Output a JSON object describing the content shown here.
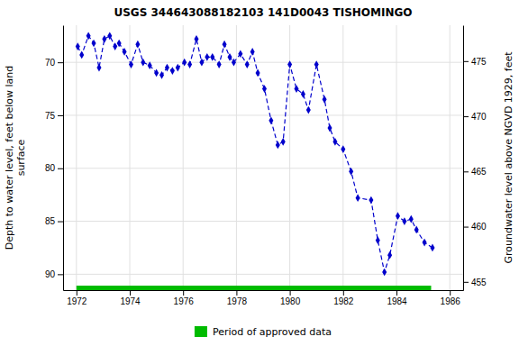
{
  "chart_data": {
    "type": "line",
    "title": "USGS 344643088182103 141D0043  TISHOMINGO",
    "ylabel": "Depth to water level, feet below land\nsurface",
    "y2label": "Groundwater level above NGVD 1929, feet",
    "xlim": [
      1971.5,
      1986.5
    ],
    "xticks": [
      1972,
      1974,
      1976,
      1978,
      1980,
      1982,
      1984,
      1986
    ],
    "ylim": [
      91.5,
      66.5
    ],
    "yticks": [
      70,
      75,
      80,
      85,
      90
    ],
    "y2lim": [
      454.25,
      478.25
    ],
    "y2ticks": [
      455,
      460,
      465,
      470,
      475
    ],
    "grid": true,
    "legend": "bottom",
    "x": [
      1972.05,
      1972.2,
      1972.45,
      1972.65,
      1972.85,
      1973.05,
      1973.25,
      1973.45,
      1973.6,
      1973.8,
      1974.05,
      1974.3,
      1974.5,
      1974.75,
      1975.0,
      1975.2,
      1975.4,
      1975.6,
      1975.8,
      1976.05,
      1976.25,
      1976.5,
      1976.7,
      1976.9,
      1977.1,
      1977.35,
      1977.55,
      1977.75,
      1977.9,
      1978.15,
      1978.4,
      1978.6,
      1978.8,
      1979.05,
      1979.3,
      1979.55,
      1979.75,
      1980.0,
      1980.25,
      1980.5,
      1980.7,
      1981.0,
      1981.3,
      1981.5,
      1981.7,
      1982.0,
      1982.3,
      1982.55,
      1983.05,
      1983.3,
      1983.55,
      1983.75,
      1984.05,
      1984.3,
      1984.55,
      1984.75,
      1985.05,
      1985.35
    ],
    "series": [
      {
        "color": "#0000cc",
        "marker": "diamond",
        "line_style": "dashed",
        "values": [
          68.5,
          69.3,
          67.5,
          68.2,
          70.5,
          67.8,
          67.5,
          68.5,
          68.2,
          69.0,
          70.2,
          68.3,
          70.0,
          70.3,
          71.0,
          71.2,
          70.5,
          70.8,
          70.5,
          70.0,
          70.2,
          67.8,
          70.0,
          69.5,
          69.5,
          70.2,
          68.3,
          69.5,
          70.0,
          69.2,
          70.2,
          69.0,
          71.0,
          72.5,
          75.5,
          77.8,
          77.5,
          70.2,
          72.5,
          73.0,
          74.5,
          70.2,
          73.5,
          76.2,
          77.5,
          78.2,
          80.3,
          82.8,
          83.0,
          86.8,
          89.8,
          88.2,
          84.5,
          85.0,
          84.8,
          85.8,
          87.0,
          87.5
        ]
      }
    ],
    "period": {
      "name": "Period of approved data",
      "color": "#00bb00",
      "start": 1972.0,
      "end": 1985.3
    }
  }
}
